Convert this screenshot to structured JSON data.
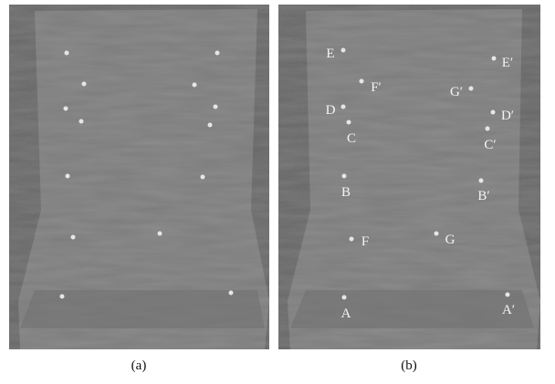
{
  "panels": [
    {
      "caption": "(a)"
    },
    {
      "caption": "(b)",
      "labels": [
        "E",
        "F′",
        "G′",
        "E′",
        "D",
        "D′",
        "C",
        "C′",
        "B",
        "B′",
        "F",
        "G",
        "A",
        "A′"
      ]
    }
  ]
}
